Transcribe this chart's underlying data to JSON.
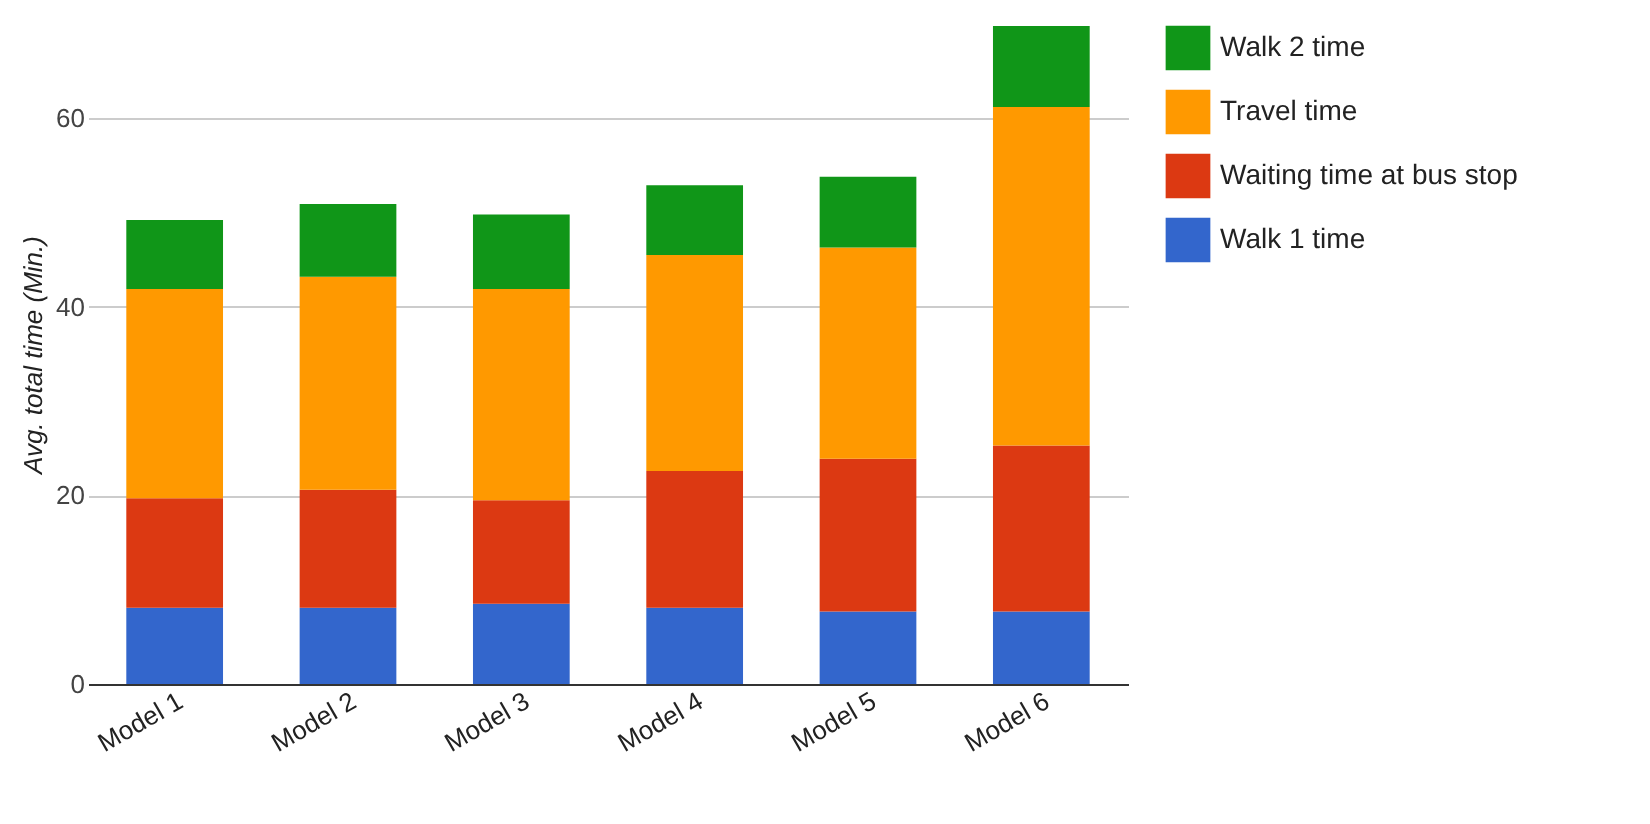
{
  "chart_data": {
    "type": "bar",
    "stacked": true,
    "ylabel": "Avg. total time (Min.)",
    "categories": [
      "Model 1",
      "Model 2",
      "Model 3",
      "Model 4",
      "Model 5",
      "Model 6"
    ],
    "series": [
      {
        "name": "Walk 1 time",
        "color": "#3366cc",
        "values": [
          8.1,
          8.1,
          8.5,
          8.1,
          7.7,
          7.7
        ]
      },
      {
        "name": "Waiting time at bus stop",
        "color": "#dc3912",
        "values": [
          11.6,
          12.5,
          11.0,
          14.5,
          16.2,
          17.6
        ]
      },
      {
        "name": "Travel time",
        "color": "#ff9900",
        "values": [
          22.2,
          22.6,
          22.4,
          22.9,
          22.4,
          35.9
        ]
      },
      {
        "name": "Walk 2 time",
        "color": "#109618",
        "values": [
          7.3,
          7.7,
          7.9,
          7.4,
          7.5,
          8.6
        ]
      }
    ],
    "ylim": [
      0,
      70
    ],
    "yticks": [
      0,
      20,
      40,
      60
    ],
    "grid": "y",
    "legend": "right"
  }
}
